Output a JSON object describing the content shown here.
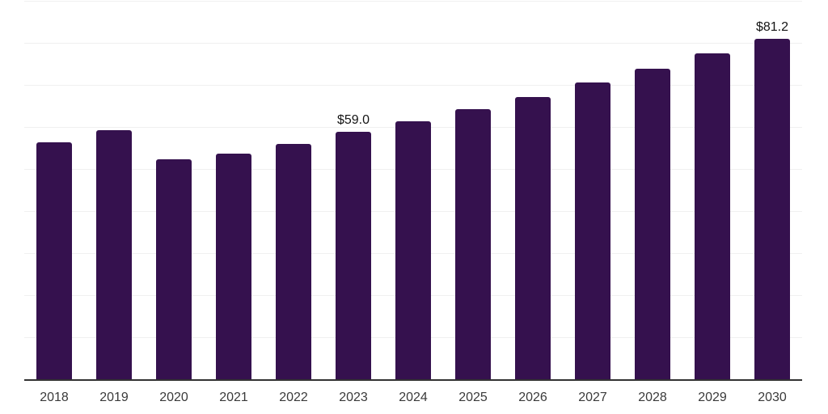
{
  "chart_data": {
    "type": "bar",
    "title": "",
    "xlabel": "",
    "ylabel": "",
    "categories": [
      "2018",
      "2019",
      "2020",
      "2021",
      "2022",
      "2023",
      "2024",
      "2025",
      "2026",
      "2027",
      "2028",
      "2029",
      "2030"
    ],
    "values": [
      56.6,
      59.4,
      52.5,
      53.9,
      56.2,
      59.0,
      61.5,
      64.5,
      67.4,
      70.7,
      74.0,
      77.6,
      81.2
    ],
    "values_estimated_from_pixels": true,
    "labeled_values": {
      "2023": 59.0,
      "2030": 81.2
    },
    "data_labels": {
      "2023": "$59.0",
      "2030": "$81.2"
    },
    "ylim": [
      0,
      90
    ],
    "grid_step": 10,
    "grid": true,
    "legend": false,
    "y_axis_tick_labels_visible": false,
    "bar_color": "#35114E",
    "gridline_color": "#f0f0f0",
    "axis_line_color": "#333333",
    "tick_label_color": "#3a3a3a",
    "data_label_color": "#141414",
    "background_color": "#ffffff"
  }
}
